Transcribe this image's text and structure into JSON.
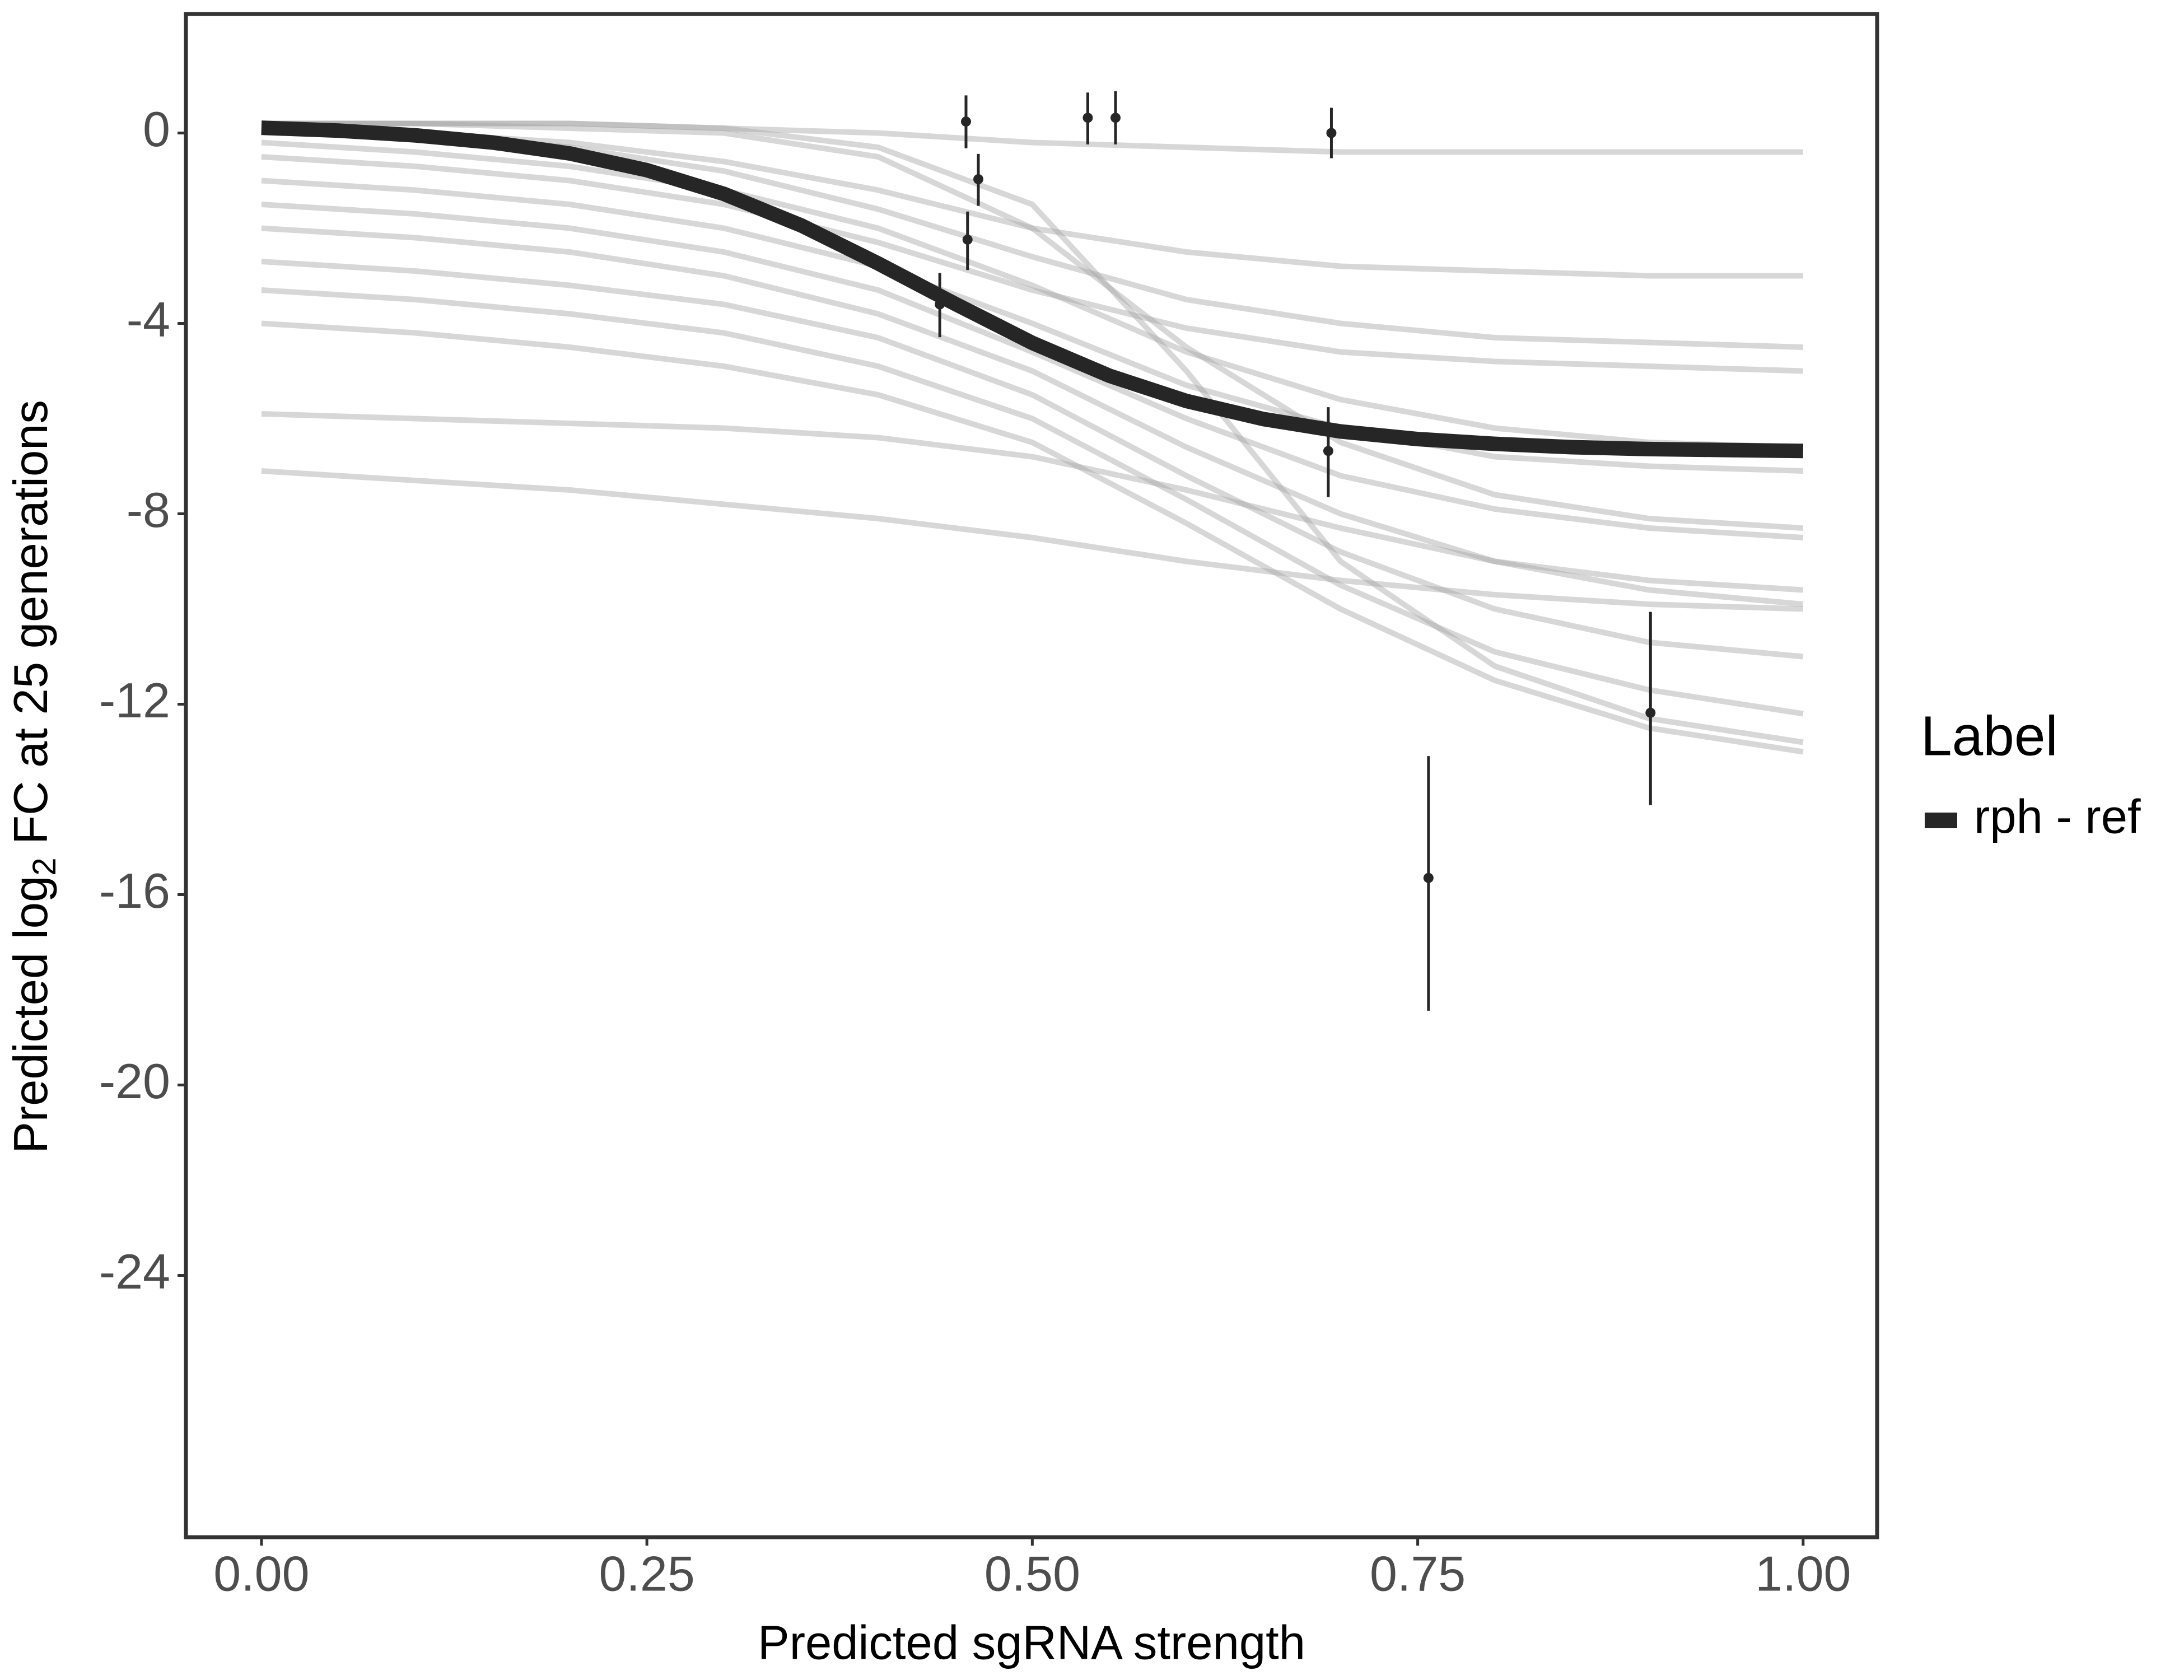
{
  "chart_data": {
    "type": "line",
    "x_label": "Predicted sgRNA strength",
    "y_label": {
      "before": "Predicted  log",
      "sub": "2",
      "after": " FC at 25 generations"
    },
    "xlim": [
      -0.049,
      1.048
    ],
    "ylim": [
      -29.5,
      2.5
    ],
    "xticks": [
      {
        "value": 0,
        "label": "0.00"
      },
      {
        "value": 0.25,
        "label": "0.25"
      },
      {
        "value": 0.5,
        "label": "0.50"
      },
      {
        "value": 0.75,
        "label": "0.75"
      },
      {
        "value": 1,
        "label": "1.00"
      }
    ],
    "yticks": [
      0,
      -4,
      -8,
      -12,
      -16,
      -20,
      -24
    ],
    "x": [
      0,
      0.05,
      0.1,
      0.15,
      0.2,
      0.25,
      0.3,
      0.35,
      0.4,
      0.45,
      0.5,
      0.55,
      0.6,
      0.65,
      0.7,
      0.75,
      0.8,
      0.85,
      0.9,
      0.95,
      1
    ],
    "series": [
      {
        "name": "rph - ref",
        "color": "#262626",
        "values": [
          0.11,
          0.05,
          -0.05,
          -0.2,
          -0.43,
          -0.78,
          -1.28,
          -1.94,
          -2.74,
          -3.59,
          -4.41,
          -5.1,
          -5.63,
          -6.01,
          -6.27,
          -6.43,
          -6.53,
          -6.6,
          -6.64,
          -6.66,
          -6.68
        ]
      }
    ],
    "draws": {
      "color": "#a6a6a6",
      "x": [
        0,
        0.1,
        0.2,
        0.3,
        0.4,
        0.5,
        0.6,
        0.7,
        0.8,
        0.9,
        1
      ],
      "values": [
        [
          0.2,
          0.2,
          0.2,
          0.1,
          0,
          -0.2,
          -0.3,
          -0.4,
          -0.4,
          -0.4,
          -0.4
        ],
        [
          0.1,
          0,
          -0.2,
          -0.6,
          -1.2,
          -2,
          -2.5,
          -2.8,
          -2.9,
          -3,
          -3
        ],
        [
          -0.5,
          -0.7,
          -1,
          -1.5,
          -2.3,
          -3.3,
          -4.1,
          -4.6,
          -4.8,
          -4.9,
          -5
        ],
        [
          -1,
          -1.2,
          -1.5,
          -2,
          -2.8,
          -4,
          -5.3,
          -6.2,
          -6.8,
          -7,
          -7.1
        ],
        [
          -1.5,
          -1.7,
          -2,
          -2.5,
          -3.3,
          -4.6,
          -6,
          -7.2,
          -7.9,
          -8.3,
          -8.5
        ],
        [
          -2,
          -2.2,
          -2.5,
          -3,
          -3.8,
          -5,
          -6.6,
          -8,
          -9,
          -9.6,
          -9.9
        ],
        [
          -2.7,
          -2.9,
          -3.2,
          -3.6,
          -4.3,
          -5.5,
          -7.2,
          -8.8,
          -10,
          -10.7,
          -11
        ],
        [
          -3.3,
          -3.5,
          -3.8,
          -4.2,
          -4.9,
          -6,
          -7.7,
          -9.5,
          -10.9,
          -11.7,
          -12.2
        ],
        [
          -4,
          -4.2,
          -4.5,
          -4.9,
          -5.5,
          -6.5,
          -8.2,
          -10,
          -11.5,
          -12.5,
          -13
        ],
        [
          0.1,
          0,
          -0.3,
          -0.8,
          -1.6,
          -2.6,
          -3.5,
          -4,
          -4.3,
          -4.4,
          -4.5
        ],
        [
          -0.2,
          -0.4,
          -0.7,
          -1.2,
          -2,
          -3.2,
          -4.6,
          -5.6,
          -6.2,
          -6.5,
          -6.6
        ],
        [
          -7.1,
          -7.3,
          -7.5,
          -7.8,
          -8.1,
          -8.5,
          -9,
          -9.4,
          -9.7,
          -9.9,
          -10
        ],
        [
          -5.9,
          -6,
          -6.1,
          -6.2,
          -6.4,
          -6.8,
          -7.5,
          -8.3,
          -9,
          -9.4,
          -9.6
        ],
        [
          0.2,
          0.2,
          0.1,
          0,
          -0.5,
          -2,
          -4.5,
          -6.5,
          -7.6,
          -8.1,
          -8.3
        ],
        [
          0.2,
          0.2,
          0.2,
          0.1,
          -0.3,
          -1.5,
          -5,
          -9,
          -11.2,
          -12.3,
          -12.8
        ]
      ]
    },
    "points": {
      "color": "#262626",
      "x": [
        0.457,
        0.465,
        0.458,
        0.44,
        0.536,
        0.554,
        0.694,
        0.692,
        0.757,
        0.901
      ],
      "y": [
        0.24,
        -0.97,
        -2.24,
        -3.6,
        0.32,
        0.32,
        0,
        -6.68,
        -15.65,
        -12.18
      ],
      "ymin": [
        -0.32,
        -1.53,
        -2.88,
        -4.29,
        -0.24,
        -0.24,
        -0.53,
        -7.65,
        -18.44,
        -14.12
      ],
      "ymax": [
        0.79,
        -0.44,
        -1.65,
        -2.94,
        0.85,
        0.88,
        0.53,
        -5.76,
        -13.09,
        -10.06
      ]
    },
    "legend": {
      "title": "Label",
      "position": "right"
    }
  }
}
